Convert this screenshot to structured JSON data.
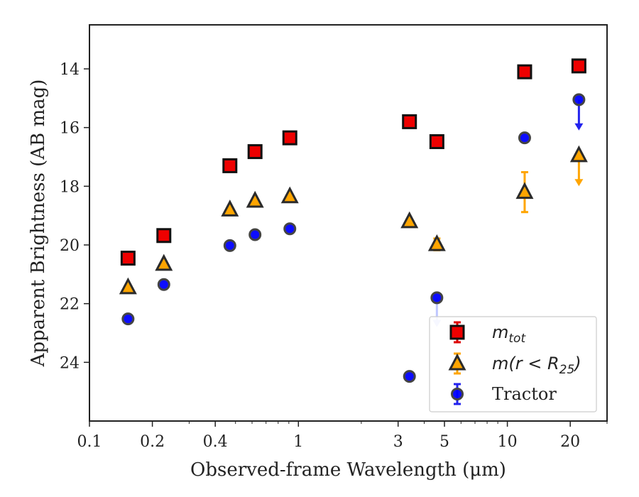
{
  "chart_data": {
    "type": "scatter",
    "xlabel": "Observed-frame Wavelength (μm)",
    "ylabel": "Apparent Brightness (AB mag)",
    "x_scale": "log",
    "xlim": [
      0.1,
      30
    ],
    "ylim": [
      26,
      12.5
    ],
    "y_inverted": true,
    "x_ticks": [
      {
        "value": 0.1,
        "label": "0.1"
      },
      {
        "value": 0.2,
        "label": "0.2"
      },
      {
        "value": 0.4,
        "label": "0.4"
      },
      {
        "value": 1,
        "label": "1"
      },
      {
        "value": 3,
        "label": "3"
      },
      {
        "value": 5,
        "label": "5"
      },
      {
        "value": 10,
        "label": "10"
      },
      {
        "value": 20,
        "label": "20"
      }
    ],
    "y_ticks": [
      {
        "value": 14,
        "label": "14"
      },
      {
        "value": 16,
        "label": "16"
      },
      {
        "value": 18,
        "label": "18"
      },
      {
        "value": 20,
        "label": "20"
      },
      {
        "value": 22,
        "label": "22"
      },
      {
        "value": 24,
        "label": "24"
      }
    ],
    "grid": false,
    "legend_position": "lower-right",
    "series": [
      {
        "name": "m_tot",
        "legend_main": "m",
        "legend_sub": "tot",
        "marker": "square",
        "color": "#ee0000",
        "edge": "#111111",
        "error_color": "#dd0000",
        "points": [
          {
            "x": 0.153,
            "y": 20.45
          },
          {
            "x": 0.227,
            "y": 19.68
          },
          {
            "x": 0.47,
            "y": 17.3
          },
          {
            "x": 0.62,
            "y": 16.82
          },
          {
            "x": 0.91,
            "y": 16.35
          },
          {
            "x": 3.4,
            "y": 15.8
          },
          {
            "x": 4.6,
            "y": 16.48
          },
          {
            "x": 12.1,
            "y": 14.1
          },
          {
            "x": 22.0,
            "y": 13.9
          }
        ]
      },
      {
        "name": "m(r < R25)",
        "legend_main": "m(r < R",
        "legend_sub": "25",
        "legend_end": ")",
        "marker": "triangle",
        "color": "#ffa500",
        "edge": "#2b2b2b",
        "error_color": "#ffa500",
        "points": [
          {
            "x": 0.153,
            "y": 21.45
          },
          {
            "x": 0.227,
            "y": 20.65
          },
          {
            "x": 0.47,
            "y": 18.8
          },
          {
            "x": 0.62,
            "y": 18.5
          },
          {
            "x": 0.91,
            "y": 18.35
          },
          {
            "x": 3.4,
            "y": 19.2
          },
          {
            "x": 4.6,
            "y": 19.98,
            "err": 0.2
          },
          {
            "x": 12.1,
            "y": 18.2,
            "err": 0.68
          },
          {
            "x": 22.0,
            "y": 16.95,
            "upper_limit": true,
            "arrow_to": 17.95
          }
        ]
      },
      {
        "name": "Tractor",
        "marker": "circle",
        "color": "#0000ff",
        "edge": "#444444",
        "error_color": "#2222ee",
        "points": [
          {
            "x": 0.153,
            "y": 22.52
          },
          {
            "x": 0.227,
            "y": 21.35
          },
          {
            "x": 0.47,
            "y": 20.02
          },
          {
            "x": 0.62,
            "y": 19.65
          },
          {
            "x": 0.91,
            "y": 19.45
          },
          {
            "x": 3.4,
            "y": 24.48
          },
          {
            "x": 4.6,
            "y": 21.8,
            "upper_limit": true,
            "arrow_to": 22.75,
            "faint": true
          },
          {
            "x": 12.1,
            "y": 16.35
          },
          {
            "x": 22.0,
            "y": 15.05,
            "upper_limit": true,
            "arrow_to": 16.05
          }
        ]
      }
    ]
  }
}
